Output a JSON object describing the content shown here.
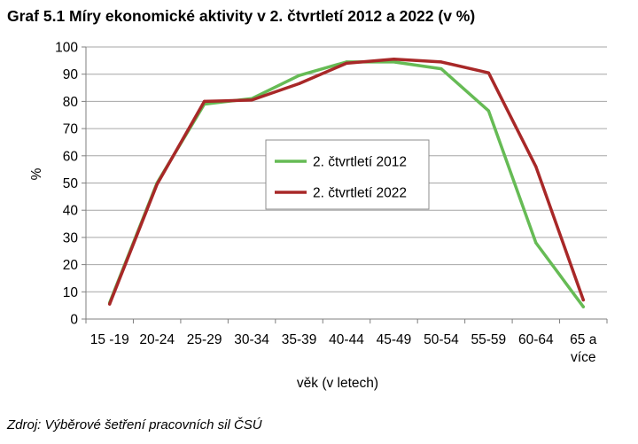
{
  "chart_data": {
    "type": "line",
    "title": "Graf 5.1 Míry ekonomické aktivity v 2. čtvrtletí 2012 a 2022 (v %)",
    "xlabel": "věk (v letech)",
    "ylabel": "%",
    "categories": [
      "15 -19",
      "20-24",
      "25-29",
      "30-34",
      "35-39",
      "40-44",
      "45-49",
      "50-54",
      "55-59",
      "60-64",
      "65 a více"
    ],
    "category_lines": [
      [
        "15 -19"
      ],
      [
        "20-24"
      ],
      [
        "25-29"
      ],
      [
        "30-34"
      ],
      [
        "35-39"
      ],
      [
        "40-44"
      ],
      [
        "45-49"
      ],
      [
        "50-54"
      ],
      [
        "55-59"
      ],
      [
        "60-64"
      ],
      [
        "65 a",
        "více"
      ]
    ],
    "ylim": [
      0,
      100
    ],
    "yticks": [
      0,
      10,
      20,
      30,
      40,
      50,
      60,
      70,
      80,
      90,
      100
    ],
    "grid": true,
    "legend_position": "center-right",
    "series": [
      {
        "name": "2. čtvrtletí 2012",
        "color": "#66bb55",
        "values": [
          6,
          50,
          79,
          81,
          89.5,
          94.5,
          94.5,
          92,
          76.5,
          28,
          4.5
        ]
      },
      {
        "name": "2. čtvrtletí 2022",
        "color": "#a82828",
        "values": [
          5.5,
          49.5,
          80,
          80.5,
          86.5,
          94,
          95.5,
          94.5,
          90.5,
          56,
          7
        ]
      }
    ]
  },
  "source": "Zdroj: Výběrové šetření pracovních sil ČSÚ"
}
